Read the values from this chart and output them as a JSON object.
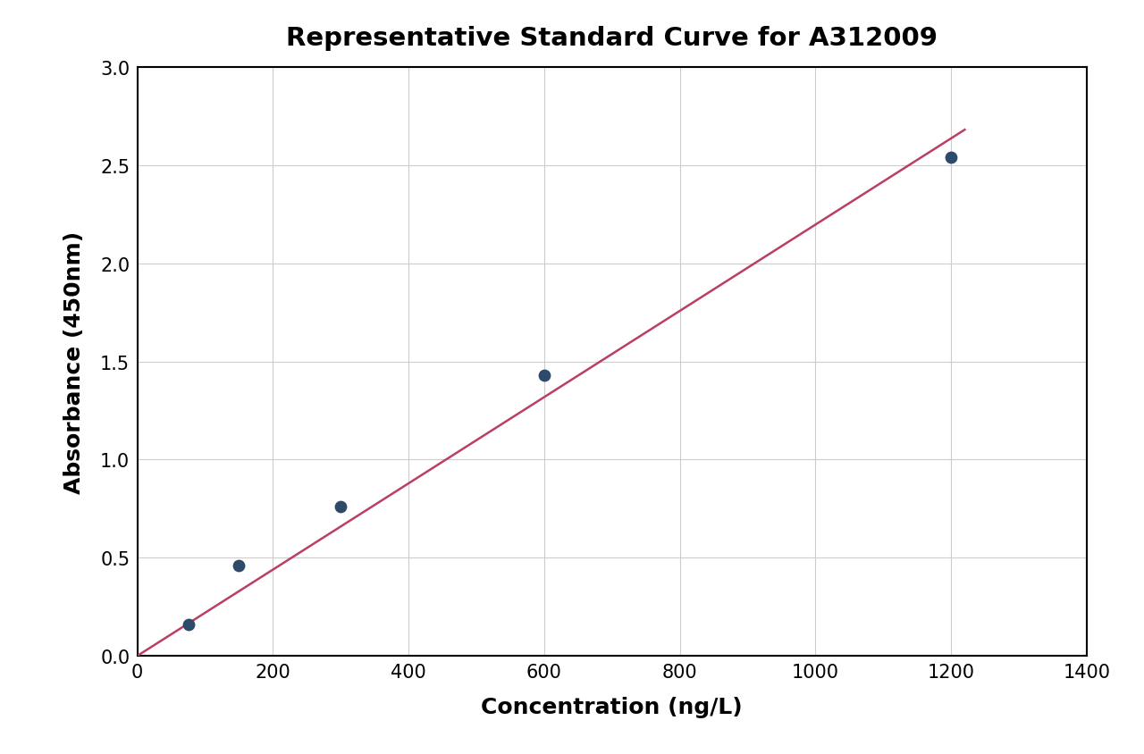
{
  "title": "Representative Standard Curve for A312009",
  "xlabel": "Concentration (ng/L)",
  "ylabel": "Absorbance (450nm)",
  "x_data": [
    75,
    150,
    300,
    600,
    1200
  ],
  "y_data": [
    0.16,
    0.46,
    0.76,
    1.43,
    2.54
  ],
  "xlim": [
    0,
    1400
  ],
  "ylim": [
    0.0,
    3.0
  ],
  "xticks": [
    0,
    200,
    400,
    600,
    800,
    1000,
    1200,
    1400
  ],
  "yticks": [
    0.0,
    0.5,
    1.0,
    1.5,
    2.0,
    2.5,
    3.0
  ],
  "scatter_color": "#2d4a6b",
  "line_color": "#b94060",
  "scatter_size": 80,
  "scatter_zorder": 5,
  "line_width": 1.8,
  "title_fontsize": 21,
  "label_fontsize": 18,
  "tick_fontsize": 15,
  "title_fontweight": "bold",
  "label_fontweight": "bold",
  "background_color": "#ffffff",
  "grid_color": "#cccccc",
  "grid_linewidth": 0.8,
  "line_x_start": 0,
  "line_x_end": 1220
}
